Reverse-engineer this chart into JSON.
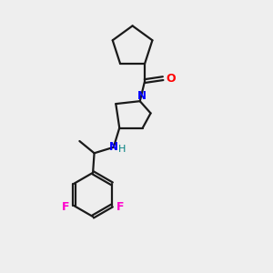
{
  "background_color": "#eeeeee",
  "bond_color": "#1a1a1a",
  "nitrogen_color": "#0000ff",
  "oxygen_color": "#ff0000",
  "fluorine_color": "#ff00cc",
  "nh_color": "#008080",
  "line_width": 1.6,
  "figsize": [
    3.0,
    3.0
  ],
  "dpi": 100,
  "xlim": [
    0,
    10
  ],
  "ylim": [
    0,
    10
  ]
}
